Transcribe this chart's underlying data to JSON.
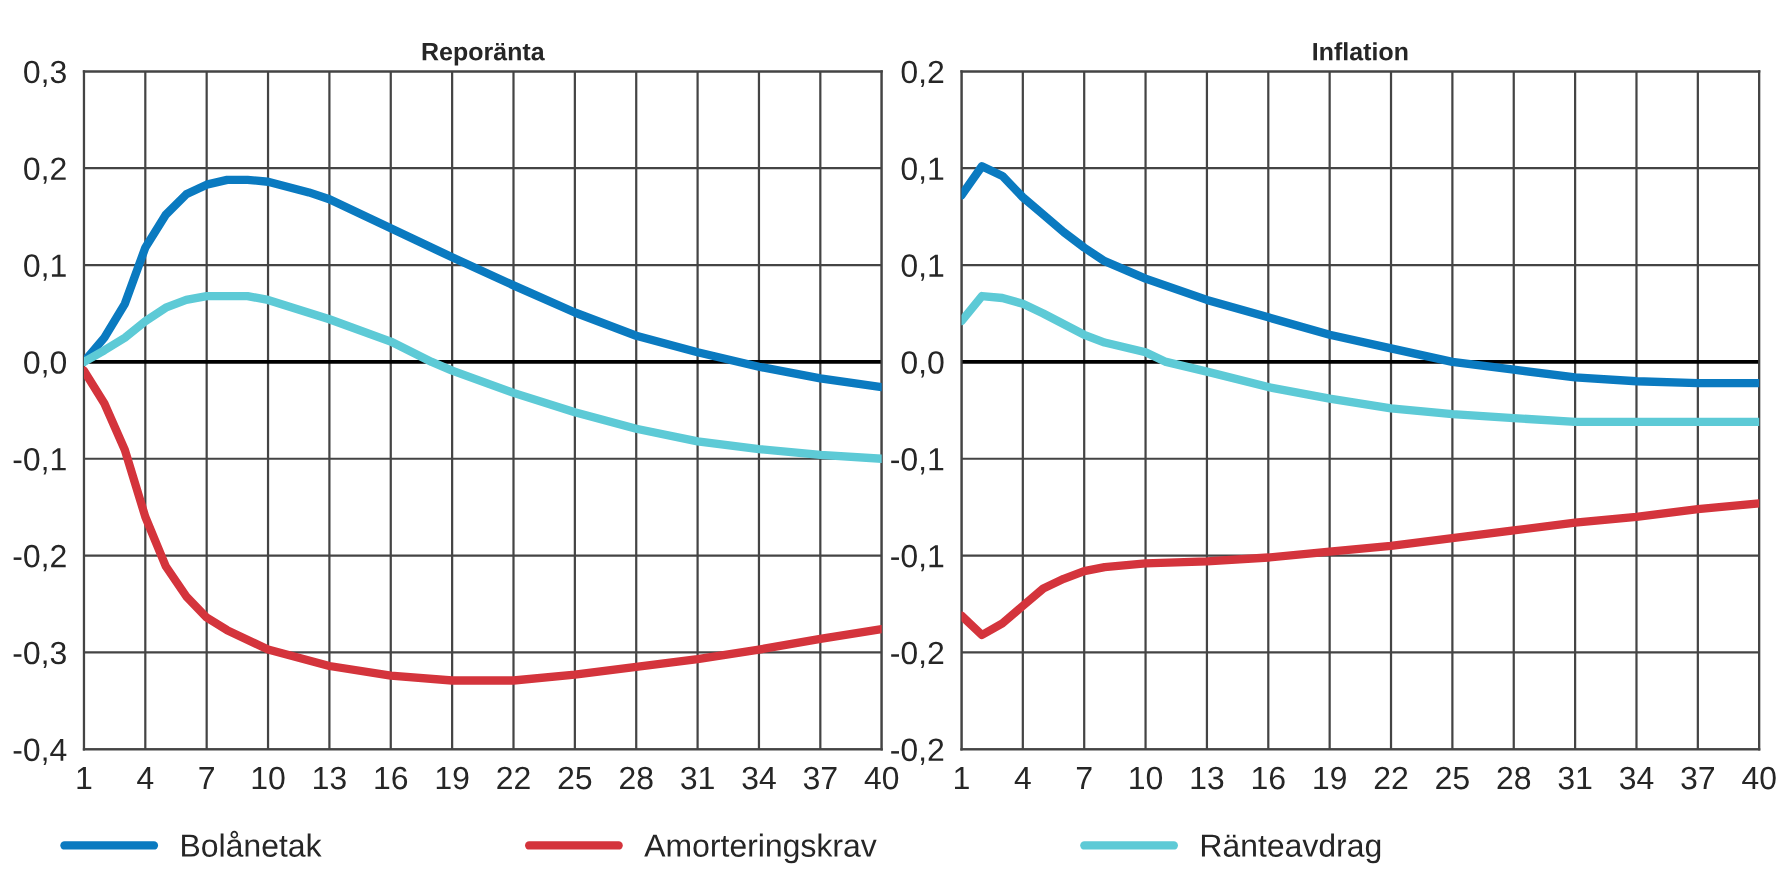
{
  "chart_data": [
    {
      "type": "line",
      "title": "Reporänta",
      "xlim": [
        1,
        40
      ],
      "xticks": [
        1,
        4,
        7,
        10,
        13,
        16,
        19,
        22,
        25,
        28,
        31,
        34,
        37,
        40
      ],
      "ylim": [
        -0.4,
        0.3
      ],
      "yticks": [
        {
          "value": -0.4,
          "label": "-0,4"
        },
        {
          "value": -0.3,
          "label": "-0,3"
        },
        {
          "value": -0.2,
          "label": "-0,2"
        },
        {
          "value": -0.1,
          "label": "-0,1"
        },
        {
          "value": 0,
          "label": "0,0"
        },
        {
          "value": 0.1,
          "label": "0,1"
        },
        {
          "value": 0.2,
          "label": "0,2"
        },
        {
          "value": 0.3,
          "label": "0,3"
        }
      ],
      "grid": true,
      "legend": "bottom",
      "line_style": "solid",
      "ref_lines": [
        {
          "axis": "y",
          "value": 0,
          "color": "#000000"
        }
      ],
      "series": [
        {
          "name": "Bolånetak",
          "color": "#0a7ac0",
          "x": [
            1,
            2,
            3,
            4,
            5,
            6,
            7,
            8,
            9,
            10,
            12,
            13,
            16,
            19,
            22,
            25,
            28,
            31,
            34,
            37,
            40
          ],
          "values": [
            0,
            0.025,
            0.06,
            0.118,
            0.152,
            0.173,
            0.183,
            0.188,
            0.188,
            0.186,
            0.175,
            0.168,
            0.138,
            0.108,
            0.079,
            0.051,
            0.027,
            0.01,
            -0.005,
            -0.017,
            -0.026
          ]
        },
        {
          "name": "Amorteringskrav",
          "color": "#d4343c",
          "x": [
            1,
            2,
            3,
            4,
            5,
            6,
            7,
            8,
            10,
            13,
            16,
            19,
            22,
            25,
            28,
            31,
            34,
            37,
            40
          ],
          "values": [
            -0.009,
            -0.043,
            -0.091,
            -0.16,
            -0.211,
            -0.242,
            -0.264,
            -0.277,
            -0.297,
            -0.314,
            -0.324,
            -0.329,
            -0.329,
            -0.323,
            -0.315,
            -0.307,
            -0.297,
            -0.286,
            -0.276
          ]
        },
        {
          "name": "Ränteavdrag",
          "color": "#5dcad6",
          "x": [
            1,
            2,
            3,
            4,
            5,
            6,
            7,
            8,
            9,
            10,
            13,
            16,
            18,
            19,
            22,
            25,
            28,
            31,
            34,
            37,
            40
          ],
          "values": [
            0,
            0.012,
            0.025,
            0.042,
            0.056,
            0.064,
            0.068,
            0.068,
            0.068,
            0.064,
            0.044,
            0.021,
            0,
            -0.009,
            -0.032,
            -0.052,
            -0.069,
            -0.082,
            -0.09,
            -0.096,
            -0.1
          ]
        }
      ]
    },
    {
      "type": "line",
      "title": "Inflation",
      "xlim": [
        1,
        40
      ],
      "xticks": [
        1,
        4,
        7,
        10,
        13,
        16,
        19,
        22,
        25,
        28,
        31,
        34,
        37,
        40
      ],
      "ylim": [
        -0.2,
        0.15
      ],
      "yticks": [
        {
          "value": -0.2,
          "label": "-0,2"
        },
        {
          "value": -0.15,
          "label": "-0,2"
        },
        {
          "value": -0.1,
          "label": "-0,1"
        },
        {
          "value": -0.05,
          "label": "-0,1"
        },
        {
          "value": 0,
          "label": "0,0"
        },
        {
          "value": 0.05,
          "label": "0,1"
        },
        {
          "value": 0.1,
          "label": "0,1"
        },
        {
          "value": 0.15,
          "label": "0,2"
        }
      ],
      "grid": true,
      "line_style": "solid",
      "ref_lines": [
        {
          "axis": "y",
          "value": 0,
          "color": "#000000"
        }
      ],
      "series": [
        {
          "color": "#0a7ac0",
          "x": [
            1,
            2,
            3,
            4,
            5,
            6,
            7,
            8,
            10,
            13,
            16,
            19,
            22,
            25,
            28,
            31,
            34,
            37,
            40
          ],
          "values": [
            0.086,
            0.101,
            0.096,
            0.085,
            0.076,
            0.067,
            0.059,
            0.052,
            0.043,
            0.032,
            0.023,
            0.014,
            0.007,
            0,
            -0.004,
            -0.008,
            -0.01,
            -0.011,
            -0.011
          ]
        },
        {
          "color": "#d4343c",
          "x": [
            1,
            2,
            3,
            4,
            5,
            6,
            7,
            8,
            10,
            13,
            16,
            19,
            22,
            25,
            28,
            31,
            34,
            37,
            40
          ],
          "values": [
            -0.131,
            -0.141,
            -0.135,
            -0.126,
            -0.117,
            -0.112,
            -0.108,
            -0.106,
            -0.104,
            -0.103,
            -0.101,
            -0.098,
            -0.095,
            -0.091,
            -0.087,
            -0.083,
            -0.08,
            -0.076,
            -0.073
          ]
        },
        {
          "color": "#5dcad6",
          "x": [
            1,
            2,
            3,
            4,
            5,
            7,
            8,
            10,
            11,
            13,
            16,
            19,
            22,
            25,
            28,
            31,
            34,
            37,
            40
          ],
          "values": [
            0.021,
            0.034,
            0.033,
            0.03,
            0.025,
            0.014,
            0.01,
            0.005,
            0,
            -0.005,
            -0.013,
            -0.019,
            -0.024,
            -0.027,
            -0.029,
            -0.031,
            -0.031,
            -0.031,
            -0.031
          ]
        }
      ]
    }
  ]
}
